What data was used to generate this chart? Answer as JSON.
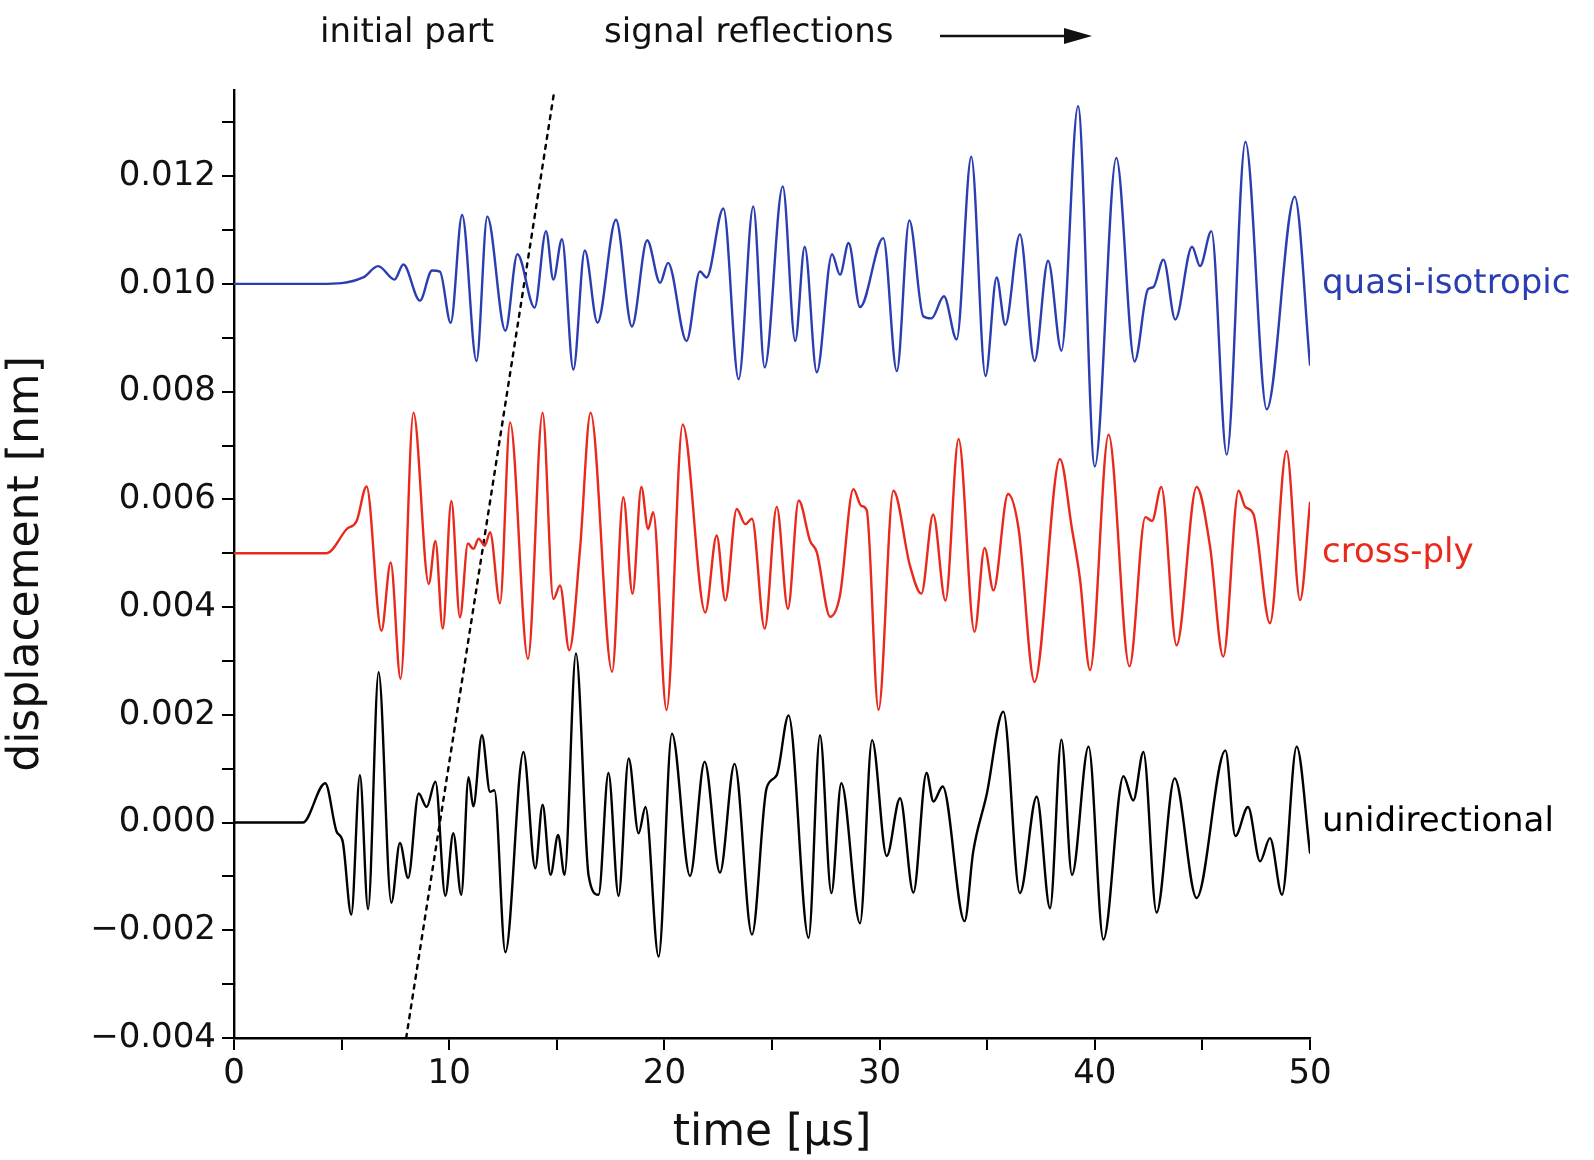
{
  "chart_data": {
    "type": "line",
    "xlabel": "time [µs]",
    "ylabel": "displacement [nm]",
    "annotations": [
      "initial part",
      "signal reflections"
    ],
    "xlim": [
      0,
      50
    ],
    "xticks": [
      0,
      {
        "value": 5,
        "label": null
      },
      10,
      {
        "value": 15,
        "label": null
      },
      20,
      {
        "value": 25,
        "label": null
      },
      30,
      {
        "value": 35,
        "label": null
      },
      40,
      {
        "value": 45,
        "label": null
      },
      50
    ],
    "ylim": [
      -0.004,
      0.0136
    ],
    "yticks": [
      {
        "value": -0.004,
        "label": "−0.004"
      },
      {
        "value": -0.003,
        "label": null
      },
      {
        "value": -0.002,
        "label": "−0.002"
      },
      {
        "value": -0.001,
        "label": null
      },
      {
        "value": 0,
        "label": "0.000"
      },
      {
        "value": 0.001,
        "label": null
      },
      {
        "value": 0.002,
        "label": "0.002"
      },
      {
        "value": 0.003,
        "label": null
      },
      {
        "value": 0.004,
        "label": "0.004"
      },
      {
        "value": 0.005,
        "label": null
      },
      {
        "value": 0.006,
        "label": "0.006"
      },
      {
        "value": 0.007,
        "label": null
      },
      {
        "value": 0.008,
        "label": "0.008"
      },
      {
        "value": 0.009,
        "label": null
      },
      {
        "value": 0.01,
        "label": "0.010"
      },
      {
        "value": 0.011,
        "label": null
      },
      {
        "value": 0.012,
        "label": "0.012"
      },
      {
        "value": 0.013,
        "label": null
      }
    ],
    "legend": false,
    "series": [
      {
        "name": "quasi-isotropic",
        "color": "#2a3eb1",
        "x": [
          0,
          4.0,
          6.0,
          6.7,
          7.46,
          7.87,
          8.64,
          9.2,
          9.57,
          10.07,
          10.6,
          11.27,
          11.77,
          12.61,
          13.17,
          13.97,
          14.5,
          14.84,
          15.24,
          15.77,
          16.3,
          16.89,
          17.75,
          18.49,
          19.2,
          19.8,
          20.17,
          21.03,
          21.65,
          21.96,
          22.74,
          23.45,
          24.13,
          24.66,
          25.5,
          26.08,
          26.52,
          27.08,
          27.79,
          28.16,
          28.56,
          29.09,
          30.17,
          30.8,
          31.38,
          32.03,
          32.41,
          32.99,
          33.58,
          34.26,
          34.92,
          35.44,
          35.84,
          36.52,
          37.2,
          37.83,
          38.45,
          39.22,
          40.0,
          41.0,
          41.85,
          42.47,
          42.72,
          43.19,
          43.74,
          44.52,
          44.89,
          45.42,
          46.13,
          47.0,
          47.99,
          49.29,
          50
        ],
        "values": [
          0.01,
          0.01,
          0.01012,
          0.01033,
          0.01008,
          0.01036,
          0.00969,
          0.01025,
          0.01023,
          0.00928,
          0.01128,
          0.00857,
          0.01125,
          0.00913,
          0.01055,
          0.00956,
          0.01098,
          0.01008,
          0.01083,
          0.00841,
          0.01062,
          0.00928,
          0.01119,
          0.00921,
          0.01081,
          0.01002,
          0.01039,
          0.00894,
          0.01023,
          0.01012,
          0.0114,
          0.00823,
          0.01144,
          0.00845,
          0.01181,
          0.00894,
          0.01069,
          0.00836,
          0.01055,
          0.01017,
          0.01076,
          0.00957,
          0.01085,
          0.00838,
          0.01118,
          0.0094,
          0.00936,
          0.00977,
          0.00897,
          0.01236,
          0.00829,
          0.01012,
          0.00924,
          0.01092,
          0.00857,
          0.01043,
          0.00876,
          0.0133,
          0.00661,
          0.01234,
          0.00856,
          0.0099,
          0.00994,
          0.01045,
          0.00934,
          0.01069,
          0.01033,
          0.01098,
          0.00683,
          0.01264,
          0.00767,
          0.01162,
          0.0085
        ]
      },
      {
        "name": "cross-ply",
        "color": "#e8291c",
        "x": [
          0,
          4.3,
          5.24,
          5.7,
          6.16,
          6.85,
          7.28,
          7.74,
          8.34,
          9.05,
          9.36,
          9.7,
          10.1,
          10.5,
          10.87,
          11.12,
          11.37,
          11.65,
          11.9,
          12.36,
          12.83,
          13.66,
          14.34,
          14.84,
          15.15,
          15.58,
          16.08,
          16.57,
          17.57,
          18.09,
          18.52,
          18.93,
          19.24,
          19.48,
          20.1,
          20.85,
          21.9,
          22.43,
          22.83,
          23.36,
          23.76,
          24.07,
          24.66,
          25.22,
          25.74,
          26.24,
          26.77,
          27.08,
          27.7,
          28.16,
          28.78,
          29.15,
          29.4,
          29.95,
          30.64,
          31.41,
          31.94,
          32.49,
          33.06,
          33.67,
          34.41,
          34.88,
          35.29,
          35.97,
          36.46,
          37.2,
          38.38,
          38.94,
          39.31,
          39.78,
          40.64,
          41.61,
          42.35,
          42.66,
          43.09,
          43.8,
          44.73,
          45.35,
          45.97,
          46.68,
          46.99,
          47.37,
          48.14,
          48.91,
          49.54,
          50
        ],
        "values": [
          0.005,
          0.005,
          0.00545,
          0.0056,
          0.00624,
          0.00356,
          0.00483,
          0.00267,
          0.00761,
          0.00443,
          0.00523,
          0.0036,
          0.00597,
          0.00381,
          0.00518,
          0.00508,
          0.00527,
          0.00514,
          0.00539,
          0.00407,
          0.00743,
          0.00304,
          0.00761,
          0.00415,
          0.0044,
          0.0032,
          0.00508,
          0.00761,
          0.0028,
          0.00604,
          0.00425,
          0.00623,
          0.00545,
          0.00576,
          0.00209,
          0.00739,
          0.0039,
          0.00533,
          0.00412,
          0.00582,
          0.00554,
          0.00564,
          0.0036,
          0.00586,
          0.00397,
          0.00598,
          0.00523,
          0.00502,
          0.00382,
          0.00422,
          0.00619,
          0.00588,
          0.0058,
          0.00209,
          0.00616,
          0.00477,
          0.00425,
          0.00572,
          0.00412,
          0.00712,
          0.00354,
          0.0051,
          0.00431,
          0.0061,
          0.00545,
          0.00261,
          0.00675,
          0.00545,
          0.00453,
          0.00283,
          0.0072,
          0.0029,
          0.00567,
          0.0056,
          0.00623,
          0.00329,
          0.00623,
          0.00514,
          0.00308,
          0.00616,
          0.00586,
          0.00573,
          0.0037,
          0.0069,
          0.00413,
          0.00594
        ]
      },
      {
        "name": "unidirectional",
        "color": "#000000",
        "x": [
          0,
          3.2,
          4.24,
          4.77,
          5.05,
          5.45,
          5.85,
          6.23,
          6.72,
          7.31,
          7.71,
          8.09,
          8.58,
          8.95,
          9.36,
          9.82,
          10.19,
          10.56,
          10.9,
          11.12,
          11.52,
          11.9,
          12.1,
          12.61,
          13.45,
          14.0,
          14.34,
          14.71,
          15.06,
          15.36,
          15.89,
          16.48,
          16.94,
          17.4,
          17.87,
          18.34,
          18.8,
          19.12,
          19.73,
          20.35,
          21.19,
          21.87,
          22.58,
          23.26,
          24.07,
          24.75,
          25.22,
          25.77,
          26.7,
          27.23,
          27.76,
          28.22,
          29.09,
          29.65,
          30.33,
          30.95,
          31.57,
          32.18,
          32.5,
          32.93,
          33.95,
          34.35,
          34.97,
          35.75,
          36.52,
          37.3,
          37.92,
          38.45,
          38.94,
          39.71,
          40.4,
          41.33,
          41.79,
          42.26,
          42.87,
          43.71,
          44.73,
          46.07,
          46.53,
          47.12,
          47.68,
          48.14,
          48.7,
          49.38,
          50
        ],
        "values": [
          0,
          0,
          0.00073,
          -0.00017,
          -0.00035,
          -0.00171,
          0.00088,
          -0.00161,
          0.00279,
          -0.00149,
          -0.00038,
          -0.00103,
          0.00054,
          0.00029,
          0.00076,
          -0.00136,
          -0.0002,
          -0.00134,
          0.00084,
          0.0003,
          0.00162,
          0.00057,
          0.0006,
          -0.00241,
          0.00131,
          -0.00085,
          0.00033,
          -0.00097,
          -0.00023,
          -0.00097,
          0.00314,
          -0.00099,
          -0.00134,
          0.00092,
          -0.00136,
          0.00119,
          -0.0002,
          0.00029,
          -0.00249,
          0.00165,
          -0.00099,
          0.00113,
          -0.00093,
          0.00109,
          -0.00208,
          0.00064,
          0.00088,
          0.00199,
          -0.00214,
          0.00162,
          -0.00131,
          0.00073,
          -0.00187,
          0.00153,
          -0.00062,
          0.00045,
          -0.0013,
          0.00092,
          0.00039,
          0.00067,
          -0.00183,
          -0.00054,
          0.00051,
          0.00206,
          -0.00131,
          0.00048,
          -0.00159,
          0.00154,
          -0.00097,
          0.00141,
          -0.00217,
          0.00086,
          0.00041,
          0.00131,
          -0.00167,
          0.00082,
          -0.0014,
          0.00134,
          -0.00025,
          0.00029,
          -0.00072,
          -0.00029,
          -0.00134,
          0.00141,
          -0.00056
        ]
      },
      {
        "color": "#000000",
        "line_style": "dotted",
        "x": [
          8,
          14.89
        ],
        "values": [
          -0.004,
          0.0136
        ]
      }
    ]
  }
}
